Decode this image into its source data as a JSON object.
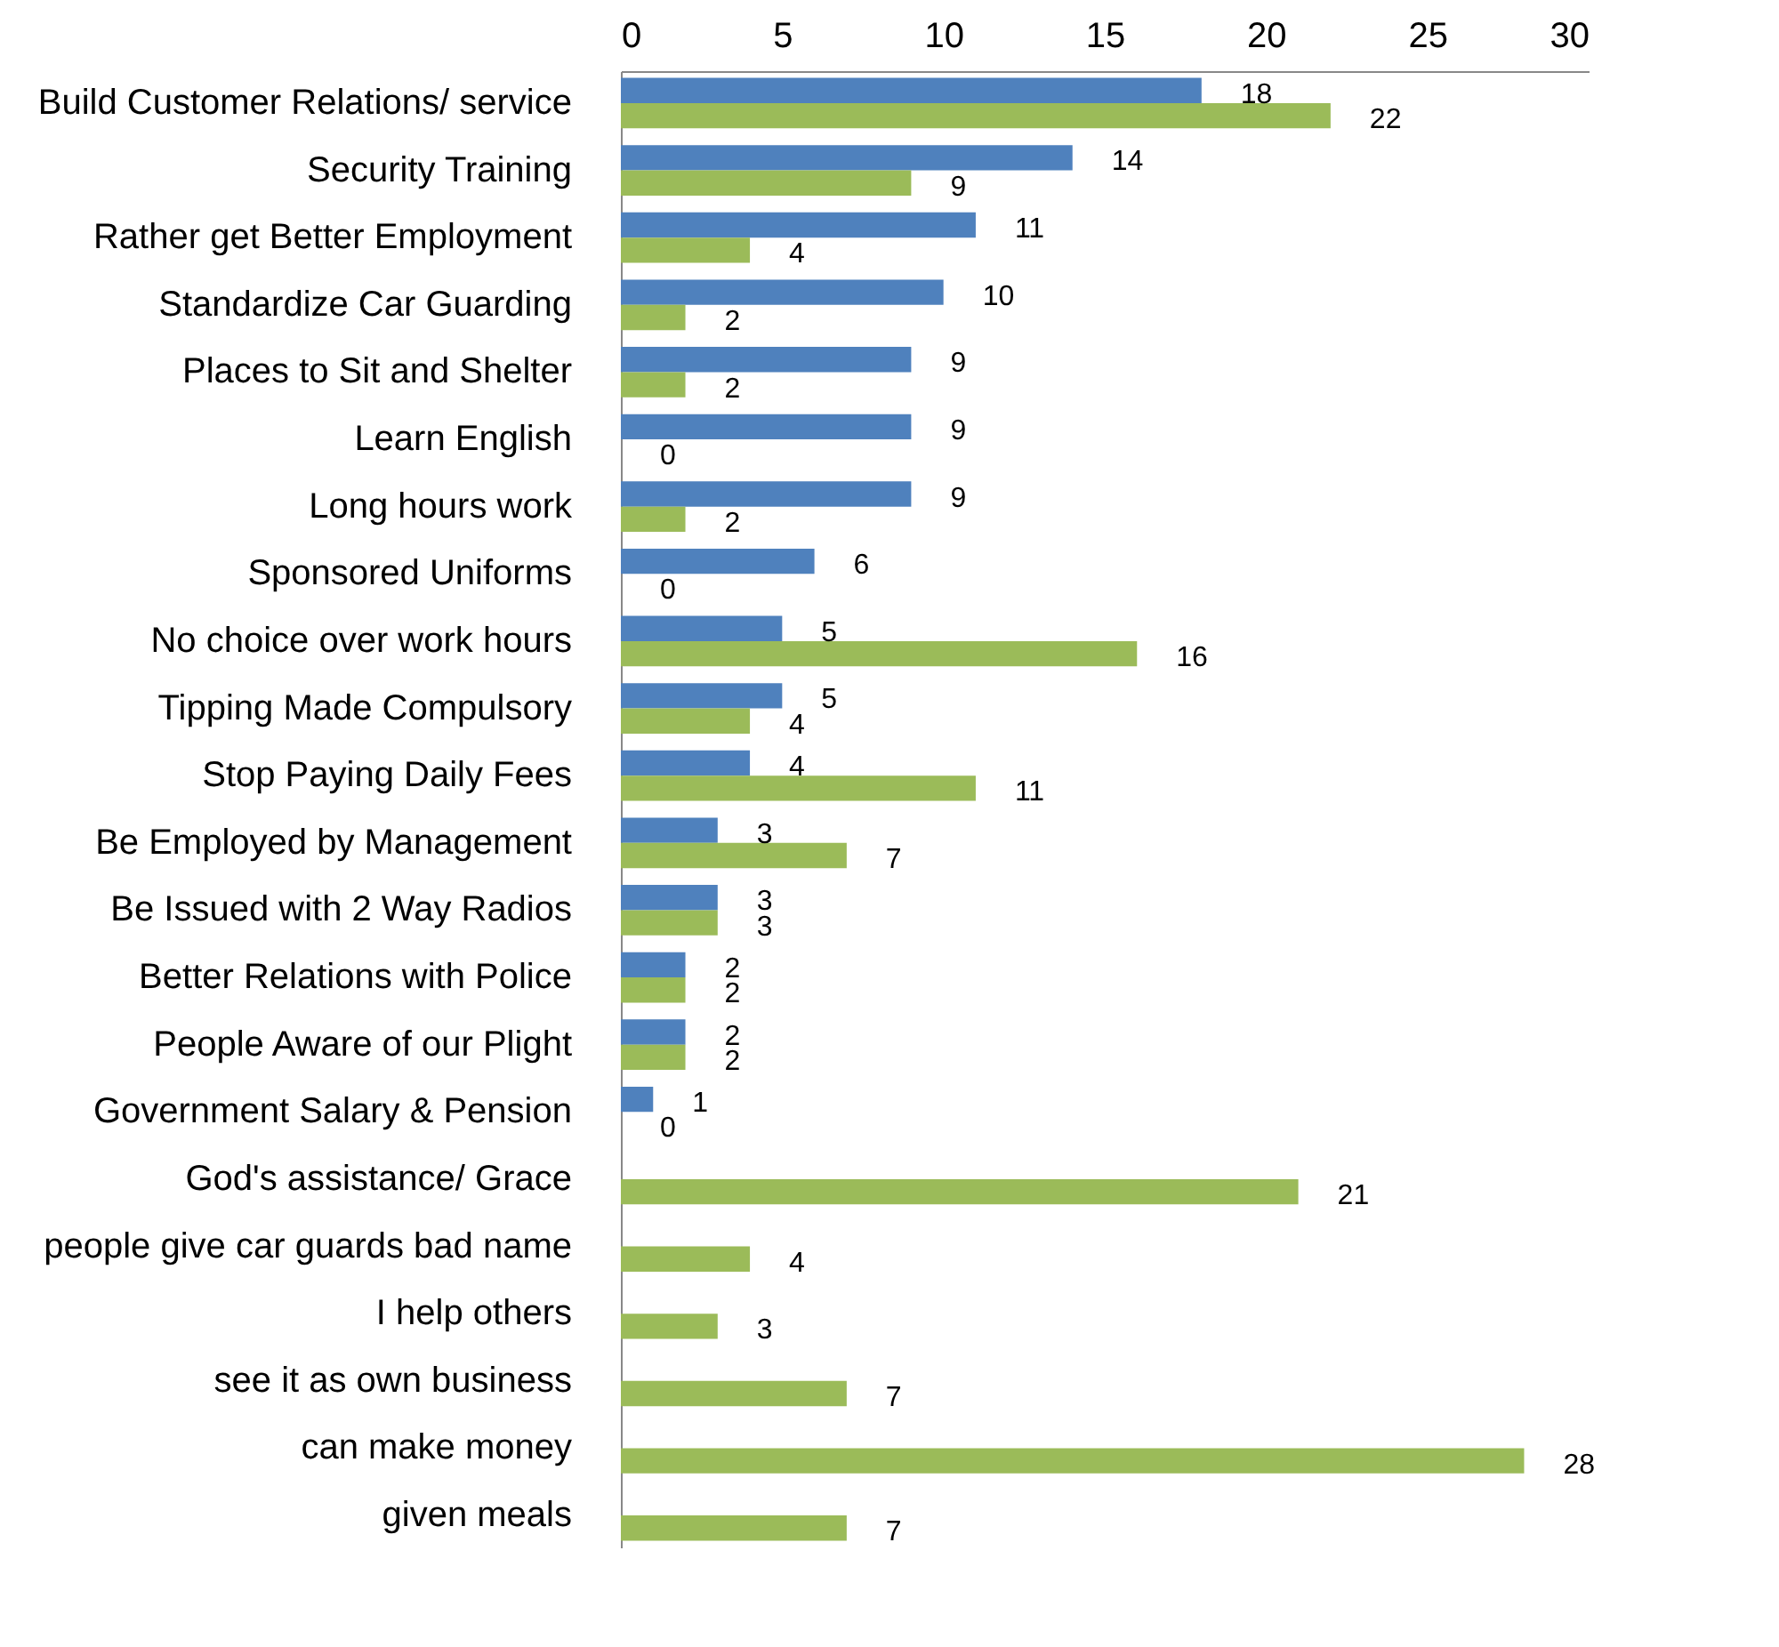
{
  "chart_data": {
    "type": "bar",
    "orientation": "horizontal",
    "categories": [
      "Build Customer Relations/ service",
      "Security Training",
      "Rather get Better Employment",
      "Standardize Car Guarding",
      "Places to Sit and Shelter",
      "Learn English",
      "Long hours work",
      "Sponsored Uniforms",
      "No choice over work hours",
      "Tipping Made Compulsory",
      "Stop Paying Daily Fees",
      "Be Employed by Management",
      "Be Issued with 2 Way Radios",
      "Better Relations with Police",
      "People Aware of our Plight",
      "Government Salary & Pension",
      "God's assistance/ Grace",
      "people give car guards bad name",
      "I help others",
      "see it as own business",
      "can make money",
      "given meals"
    ],
    "series": [
      {
        "color": "#4f81bd",
        "values": [
          18,
          14,
          11,
          10,
          9,
          9,
          9,
          6,
          5,
          5,
          4,
          3,
          3,
          2,
          2,
          1,
          null,
          null,
          null,
          null,
          null,
          null
        ]
      },
      {
        "color": "#9bbb59",
        "values": [
          22,
          9,
          4,
          2,
          2,
          0,
          2,
          0,
          16,
          4,
          11,
          7,
          3,
          2,
          2,
          0,
          21,
          4,
          3,
          7,
          28,
          7
        ]
      }
    ],
    "xlim": [
      0,
      30
    ],
    "xticks": [
      0,
      5,
      10,
      15,
      20,
      25,
      30
    ],
    "data_labels": true,
    "grid": false,
    "legend": false
  }
}
